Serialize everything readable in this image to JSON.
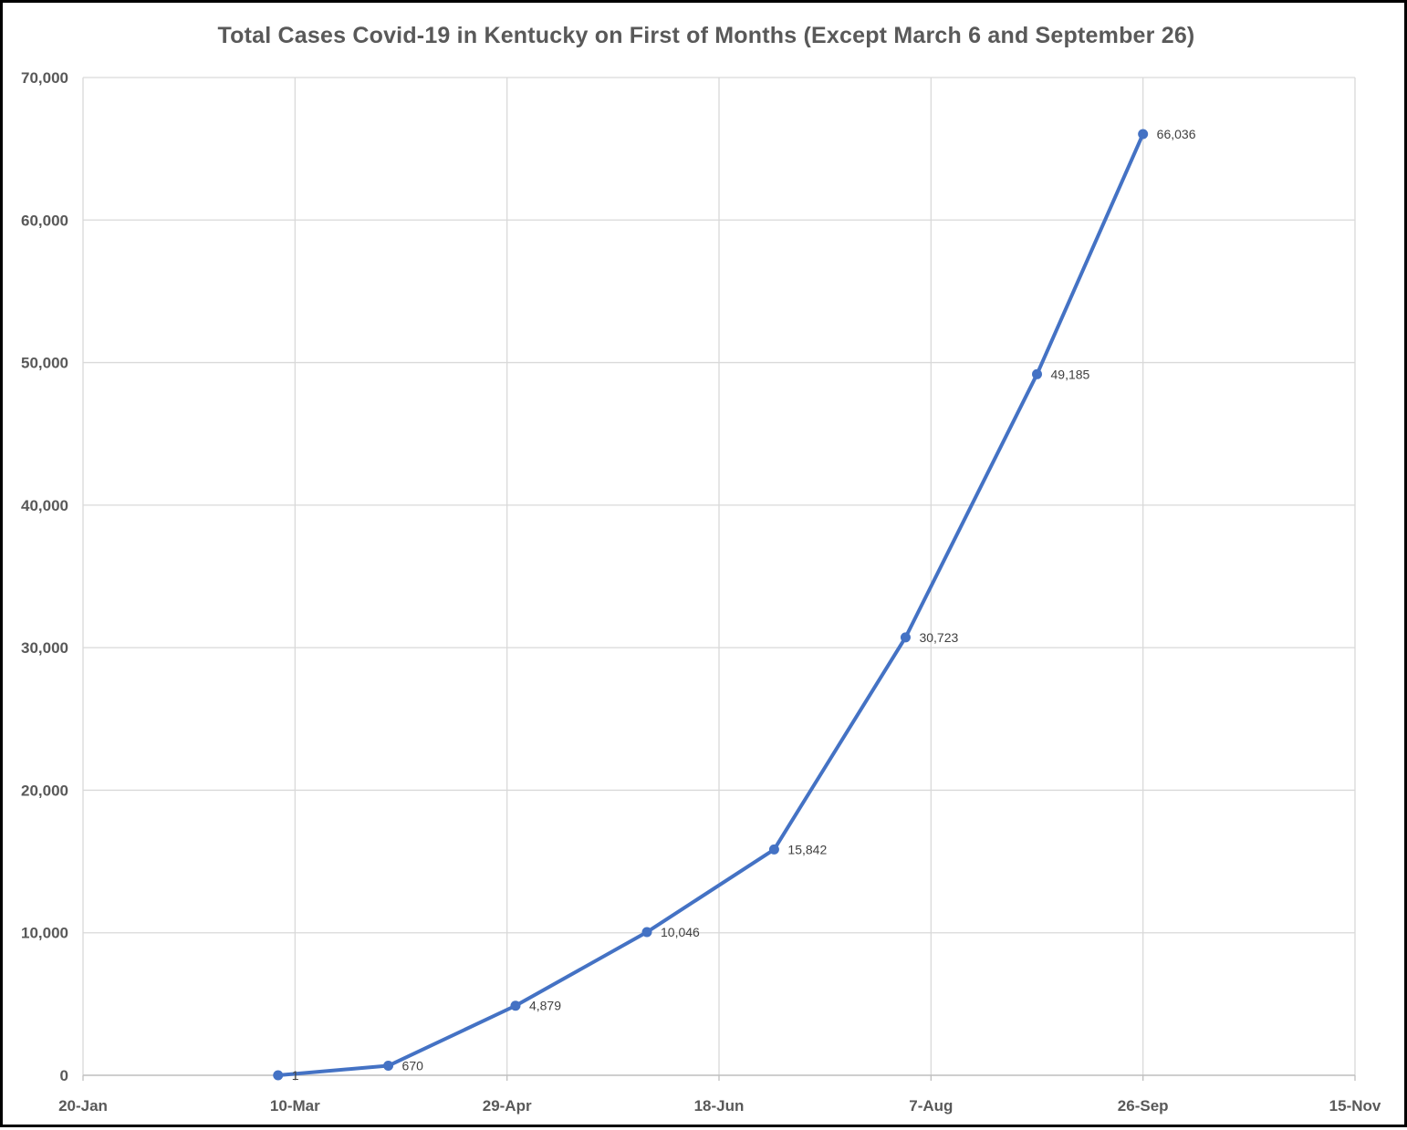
{
  "chart_data": {
    "type": "line",
    "title": "Total Cases Covid-19 in Kentucky on First of Months (Except March 6 and September 26)",
    "xlabel": "",
    "ylabel": "",
    "x_axis": {
      "type": "date",
      "year": 2020,
      "range": [
        "2020-01-20",
        "2020-11-15"
      ],
      "tick_dates": [
        "2020-01-20",
        "2020-03-10",
        "2020-04-29",
        "2020-06-18",
        "2020-08-07",
        "2020-09-26",
        "2020-11-15"
      ],
      "tick_labels": [
        "20-Jan",
        "10-Mar",
        "29-Apr",
        "18-Jun",
        "7-Aug",
        "26-Sep",
        "15-Nov"
      ]
    },
    "y_axis": {
      "range": [
        0,
        70000
      ],
      "tick_values": [
        0,
        10000,
        20000,
        30000,
        40000,
        50000,
        60000,
        70000
      ],
      "tick_labels": [
        "0",
        "10,000",
        "20,000",
        "30,000",
        "40,000",
        "50,000",
        "60,000",
        "70,000"
      ]
    },
    "grid": true,
    "legend": "none",
    "series": [
      {
        "color": "#4472C4",
        "points": [
          {
            "x": "2020-03-06",
            "y": 1,
            "label": "1"
          },
          {
            "x": "2020-04-01",
            "y": 670,
            "label": "670"
          },
          {
            "x": "2020-05-01",
            "y": 4879,
            "label": "4,879"
          },
          {
            "x": "2020-06-01",
            "y": 10046,
            "label": "10,046"
          },
          {
            "x": "2020-07-01",
            "y": 15842,
            "label": "15,842"
          },
          {
            "x": "2020-08-01",
            "y": 30723,
            "label": "30,723"
          },
          {
            "x": "2020-09-01",
            "y": 49185,
            "label": "49,185"
          },
          {
            "x": "2020-09-26",
            "y": 66036,
            "label": "66,036"
          }
        ]
      }
    ]
  }
}
